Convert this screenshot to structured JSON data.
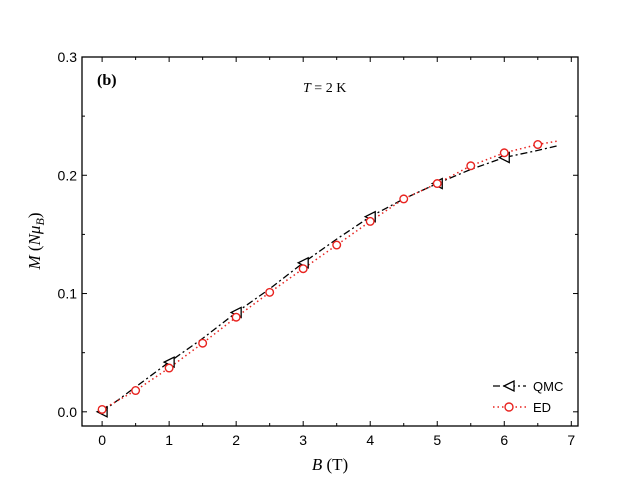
{
  "chart_data": {
    "type": "line",
    "panel_label": "(b)",
    "annotation": "T = 2 K",
    "annotation_parts": {
      "var": "T",
      "rest": " = 2 K"
    },
    "xlabel": "B (T)",
    "xlabel_parts": {
      "var": "B",
      "unit": " (T)"
    },
    "ylabel": "M (NμB)",
    "ylabel_parts": {
      "var": "M",
      "open": " (",
      "n": "N",
      "mu": "μ",
      "sub": "B",
      "close": ")"
    },
    "xlim": [
      -0.3,
      7.1
    ],
    "ylim": [
      -0.012,
      0.3
    ],
    "xticks": [
      0,
      1,
      2,
      3,
      4,
      5,
      6,
      7
    ],
    "xtick_labels": [
      "0",
      "1",
      "2",
      "3",
      "4",
      "5",
      "6",
      "7"
    ],
    "yticks": [
      0.0,
      0.1,
      0.2,
      0.3
    ],
    "ytick_labels": [
      "0.0",
      "0.1",
      "0.2",
      "0.3"
    ],
    "grid": false,
    "legend_position": "bottom-right",
    "series": [
      {
        "name": "QMC",
        "color": "#000000",
        "line_style": "dash-dot",
        "marker": "triangle-left",
        "x": [
          0.0,
          0.5,
          1.0,
          1.5,
          2.0,
          2.5,
          3.0,
          3.5,
          4.0,
          4.5,
          5.0,
          5.5,
          6.0,
          6.5,
          6.8
        ],
        "y": [
          0.0,
          0.021,
          0.042,
          0.062,
          0.084,
          0.104,
          0.126,
          0.146,
          0.165,
          0.18,
          0.193,
          0.205,
          0.215,
          0.221,
          0.225
        ],
        "marker_x": [
          0,
          1,
          2,
          3,
          4,
          5,
          6
        ],
        "marker_y": [
          0.0,
          0.042,
          0.084,
          0.126,
          0.165,
          0.193,
          0.215
        ]
      },
      {
        "name": "ED",
        "color": "#e8231f",
        "line_style": "dotted",
        "marker": "circle",
        "x": [
          0.0,
          0.5,
          1.0,
          1.5,
          2.0,
          2.5,
          3.0,
          3.5,
          4.0,
          4.5,
          5.0,
          5.5,
          6.0,
          6.5,
          6.8
        ],
        "y": [
          0.002,
          0.018,
          0.037,
          0.058,
          0.08,
          0.101,
          0.121,
          0.141,
          0.161,
          0.18,
          0.193,
          0.208,
          0.219,
          0.226,
          0.229
        ],
        "marker_x": [
          0.0,
          0.5,
          1.0,
          1.5,
          2.0,
          2.5,
          3.0,
          3.5,
          4.0,
          4.5,
          5.0,
          5.5,
          6.0,
          6.5
        ],
        "marker_y": [
          0.002,
          0.018,
          0.037,
          0.058,
          0.08,
          0.101,
          0.121,
          0.141,
          0.161,
          0.18,
          0.193,
          0.208,
          0.219,
          0.226
        ]
      }
    ]
  }
}
